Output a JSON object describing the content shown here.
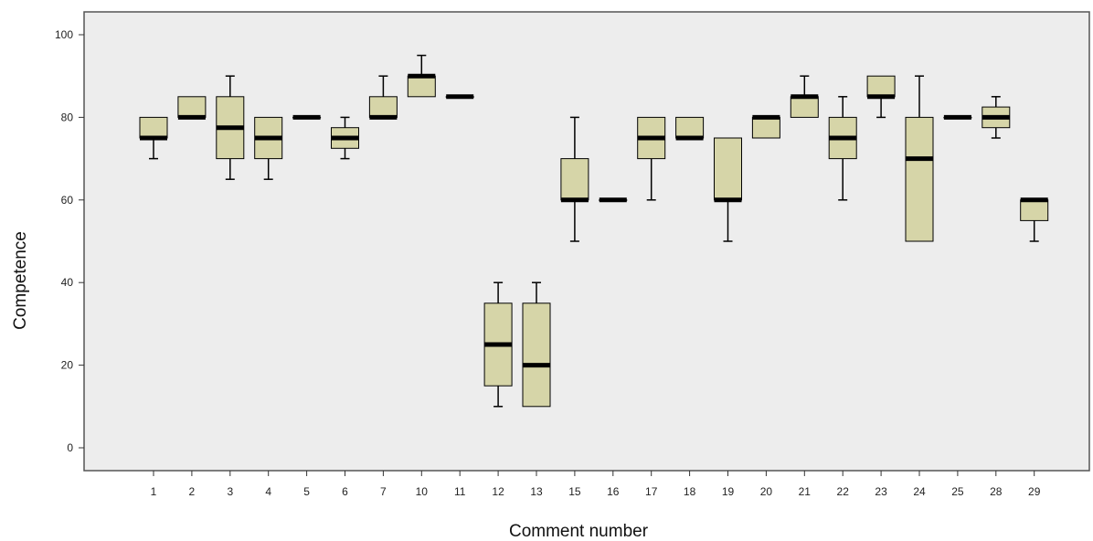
{
  "chart_data": {
    "type": "boxplot",
    "title": "",
    "xlabel": "Comment number",
    "ylabel": "Competence",
    "ylim": [
      0,
      100
    ],
    "yticks": [
      0,
      20,
      40,
      60,
      80,
      100
    ],
    "grid": false,
    "box_color": "#d6d5a8",
    "edge_color": "#000000",
    "plot_background": "#ededed",
    "categories": [
      "1",
      "2",
      "3",
      "4",
      "5",
      "6",
      "7",
      "10",
      "11",
      "12",
      "13",
      "15",
      "16",
      "17",
      "18",
      "19",
      "20",
      "21",
      "22",
      "23",
      "24",
      "25",
      "28",
      "29"
    ],
    "boxes": [
      {
        "category": "1",
        "min": 70,
        "q1": 75,
        "median": 75,
        "q3": 80,
        "max": 80
      },
      {
        "category": "2",
        "min": 80,
        "q1": 80,
        "median": 80,
        "q3": 85,
        "max": 85
      },
      {
        "category": "3",
        "min": 65,
        "q1": 70,
        "median": 77.5,
        "q3": 85,
        "max": 90
      },
      {
        "category": "4",
        "min": 65,
        "q1": 70,
        "median": 75,
        "q3": 80,
        "max": 80
      },
      {
        "category": "5",
        "min": 80,
        "q1": 80,
        "median": 80,
        "q3": 80,
        "max": 80
      },
      {
        "category": "6",
        "min": 70,
        "q1": 72.5,
        "median": 75,
        "q3": 77.5,
        "max": 80
      },
      {
        "category": "7",
        "min": 80,
        "q1": 80,
        "median": 80,
        "q3": 85,
        "max": 90
      },
      {
        "category": "10",
        "min": 85,
        "q1": 85,
        "median": 90,
        "q3": 90,
        "max": 95
      },
      {
        "category": "11",
        "min": 85,
        "q1": 85,
        "median": 85,
        "q3": 85,
        "max": 85
      },
      {
        "category": "12",
        "min": 10,
        "q1": 15,
        "median": 25,
        "q3": 35,
        "max": 40
      },
      {
        "category": "13",
        "min": 10,
        "q1": 10,
        "median": 20,
        "q3": 35,
        "max": 40
      },
      {
        "category": "15",
        "min": 50,
        "q1": 60,
        "median": 60,
        "q3": 70,
        "max": 80
      },
      {
        "category": "16",
        "min": 60,
        "q1": 60,
        "median": 60,
        "q3": 60,
        "max": 60
      },
      {
        "category": "17",
        "min": 60,
        "q1": 70,
        "median": 75,
        "q3": 80,
        "max": 80
      },
      {
        "category": "18",
        "min": 75,
        "q1": 75,
        "median": 75,
        "q3": 80,
        "max": 80
      },
      {
        "category": "19",
        "min": 50,
        "q1": 60,
        "median": 60,
        "q3": 75,
        "max": 75
      },
      {
        "category": "20",
        "min": 75,
        "q1": 75,
        "median": 80,
        "q3": 80,
        "max": 80
      },
      {
        "category": "21",
        "min": 80,
        "q1": 80,
        "median": 85,
        "q3": 85,
        "max": 90
      },
      {
        "category": "22",
        "min": 60,
        "q1": 70,
        "median": 75,
        "q3": 80,
        "max": 85
      },
      {
        "category": "23",
        "min": 80,
        "q1": 85,
        "median": 85,
        "q3": 90,
        "max": 90
      },
      {
        "category": "24",
        "min": 50,
        "q1": 50,
        "median": 70,
        "q3": 80,
        "max": 90
      },
      {
        "category": "25",
        "min": 80,
        "q1": 80,
        "median": 80,
        "q3": 80,
        "max": 80
      },
      {
        "category": "28",
        "min": 75,
        "q1": 77.5,
        "median": 80,
        "q3": 82.5,
        "max": 85
      },
      {
        "category": "29",
        "min": 50,
        "q1": 55,
        "median": 60,
        "q3": 60,
        "max": 60
      }
    ]
  }
}
